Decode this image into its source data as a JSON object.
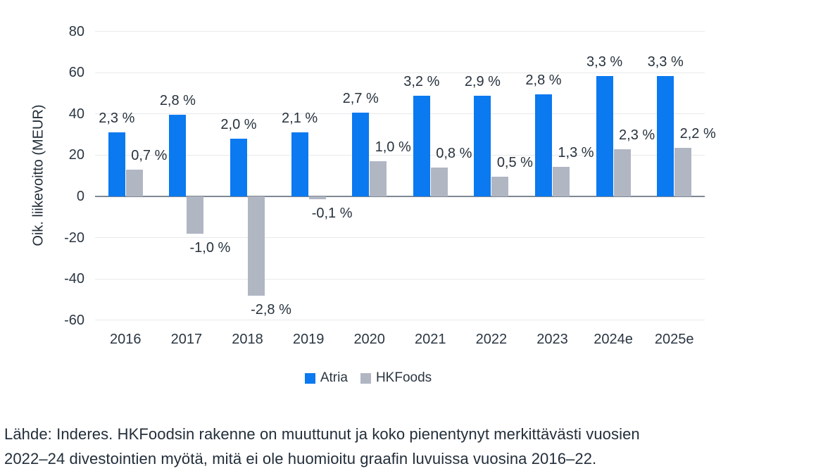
{
  "chart_data": {
    "type": "bar",
    "title": "",
    "xlabel": "",
    "ylabel": "Oik. liikevoitto (MEUR)",
    "ylim": [
      -60,
      80
    ],
    "yticks": [
      80,
      60,
      40,
      20,
      0,
      -20,
      -40,
      -60
    ],
    "grid": true,
    "legend_position": "bottom",
    "categories": [
      "2016",
      "2017",
      "2018",
      "2019",
      "2020",
      "2021",
      "2022",
      "2023",
      "2024e",
      "2025e"
    ],
    "series": [
      {
        "name": "Atria",
        "color": "#0b79f0",
        "unit": "MEUR",
        "values_meur": [
          31,
          39.5,
          28,
          31,
          40.5,
          49,
          49,
          49.5,
          58.5,
          58.5
        ],
        "labels_pct": [
          "2,3 %",
          "2,8 %",
          "2,0 %",
          "2,1 %",
          "2,7 %",
          "3,2 %",
          "2,9 %",
          "2,8 %",
          "3,3 %",
          "3,3 %"
        ]
      },
      {
        "name": "HKFoods",
        "color": "#b1b6c3",
        "unit": "MEUR",
        "values_meur": [
          13,
          -18,
          -48,
          -1.5,
          17,
          14,
          9.5,
          14.5,
          23,
          23.5
        ],
        "labels_pct": [
          "0,7 %",
          "-1,0 %",
          "-2,8 %",
          "-0,1 %",
          "1,0 %",
          "0,8 %",
          "0,5 %",
          "1,3 %",
          "2,3 %",
          "2,2 %"
        ]
      }
    ]
  },
  "footer": {
    "line1": "Lähde: Inderes. HKFoodsin rakenne on muuttunut ja koko pienentynyt merkittävästi vuosien",
    "line2": "2022–24 divestointien myötä, mitä ei ole huomioitu graafin luvuissa vuosina 2016–22."
  },
  "colors": {
    "atria_blue": "#0b79f0",
    "hkfoods_gray": "#b1b6c3",
    "axis_line": "#7e8893",
    "gridline": "#e8e9ea",
    "text": "#2b3642"
  }
}
